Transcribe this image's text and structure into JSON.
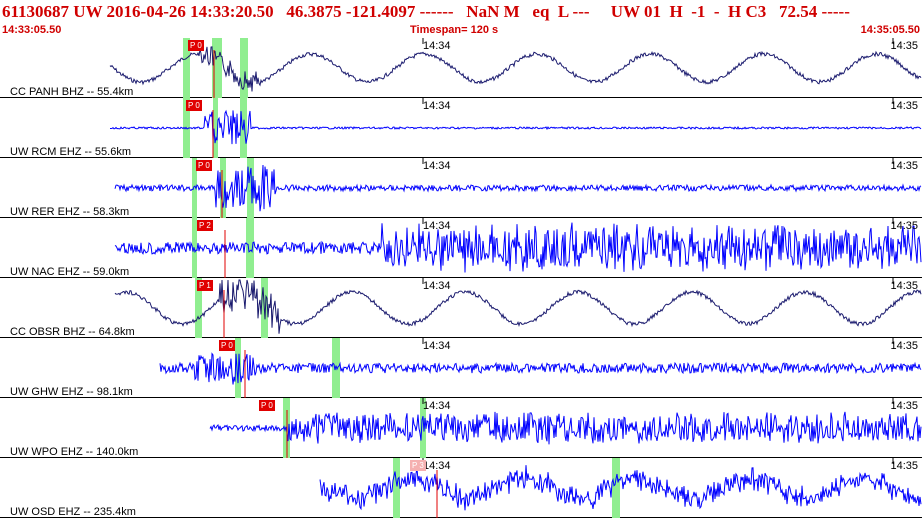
{
  "header": {
    "title": "61130687 UW 2016-04-26 14:33:20.50   46.3875 -121.4097 ------   NaN M   eq  L ---     UW 01  H  -1  -  H C3   72.54 -----",
    "time_start": "14:33:05.50",
    "timespan": "Timespan= 120 s",
    "time_end": "14:35:05.50"
  },
  "colors": {
    "title": "#d00000",
    "trace_blue": "#0000ff",
    "trace_navy": "#1a1a6e",
    "pick": "#e00000",
    "window": "#90ee90"
  },
  "panels": [
    {
      "label": "CC PANH BHZ -- 55.4km",
      "mid_tick": "14:34",
      "right_tick": "14:35",
      "pick": "P 0",
      "color": "navy"
    },
    {
      "label": "UW RCM EHZ -- 55.6km",
      "mid_tick": "14:34",
      "right_tick": "14:35",
      "pick": "P 0",
      "color": "blue"
    },
    {
      "label": "UW RER EHZ -- 58.3km",
      "mid_tick": "14:34",
      "right_tick": "14:35",
      "pick": "P 0",
      "color": "blue"
    },
    {
      "label": "UW NAC EHZ -- 59.0km",
      "mid_tick": "14:34",
      "right_tick": "14:35",
      "pick": "P 2",
      "color": "blue"
    },
    {
      "label": "CC OBSR BHZ -- 64.8km",
      "mid_tick": "14:34",
      "right_tick": "14:35",
      "pick": "P 1",
      "color": "navy"
    },
    {
      "label": "UW GHW EHZ -- 98.1km",
      "mid_tick": "14:34",
      "right_tick": "14:35",
      "pick": "P 0",
      "color": "blue"
    },
    {
      "label": "UW WPO EHZ -- 140.0km",
      "mid_tick": "14:34",
      "right_tick": "14:35",
      "pick": "P 0",
      "color": "blue"
    },
    {
      "label": "UW OSD EHZ -- 235.4km",
      "mid_tick": "14:34",
      "right_tick": "14:35",
      "pick": "P 3",
      "color": "blue"
    }
  ]
}
